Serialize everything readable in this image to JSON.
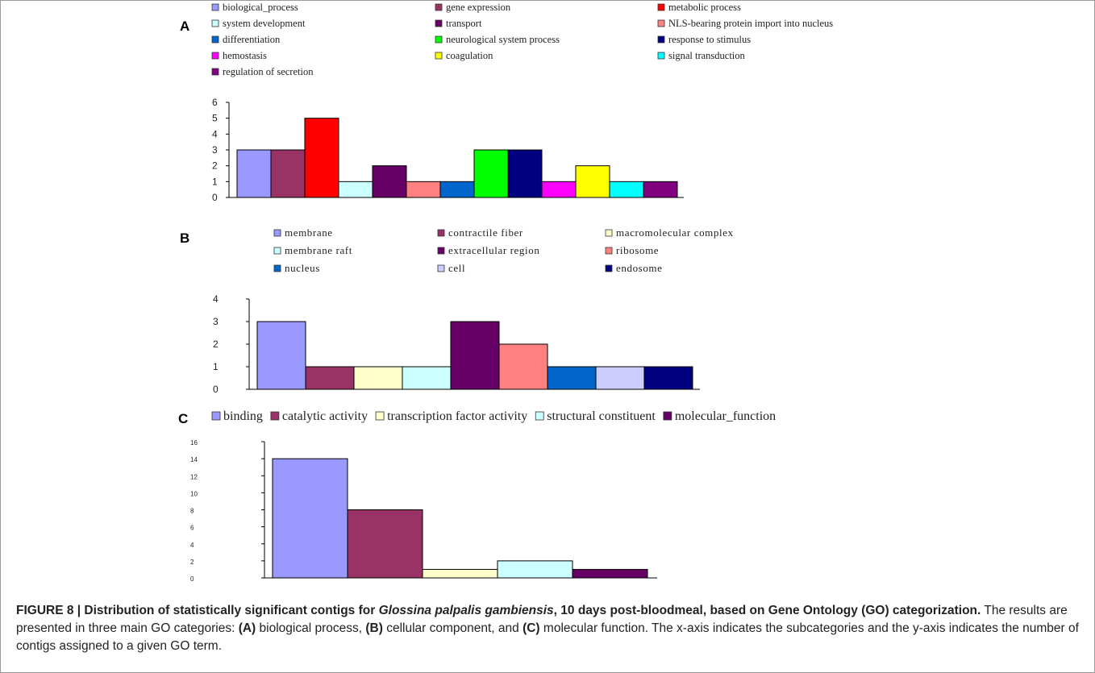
{
  "caption": {
    "bold_prefix": "FIGURE 8 | Distribution of statistically significant contigs for ",
    "bold_italic_species": "Glossina palpalis gambiensis",
    "bold_suffix": ", 10 days post-bloodmeal, based on Gene Ontology (GO) categorization.",
    "text_1": " The results are presented in three main GO categories: ",
    "label_a": "(A)",
    "text_2": " biological process, ",
    "label_b": "(B)",
    "text_3": " cellular component, and ",
    "label_c": "(C)",
    "text_4": " molecular function. The x-axis indicates the subcategories and the y-axis indicates the number of contigs assigned to a given GO term."
  },
  "chart_data": [
    {
      "panel": "A",
      "type": "bar",
      "categories": [
        "biological_process",
        "gene expression",
        "metabolic process",
        "system development",
        "transport",
        "NLS-bearing protein import into nucleus",
        "differentiation",
        "neurological system process",
        "response to stimulus",
        "hemostasis",
        "coagulation",
        "signal transduction",
        "regulation of secretion"
      ],
      "values": [
        3,
        3,
        5,
        1,
        2,
        1,
        1,
        3,
        3,
        1,
        2,
        1,
        1
      ],
      "colors": [
        "#9999ff",
        "#993366",
        "#ff0000",
        "#ccffff",
        "#660066",
        "#ff8080",
        "#0066cc",
        "#00ff00",
        "#000080",
        "#ff00ff",
        "#ffff00",
        "#00ffff",
        "#800080"
      ],
      "ylim": [
        0,
        6
      ],
      "yticks": [
        "0",
        "1",
        "2",
        "3",
        "4",
        "5",
        "6"
      ],
      "legend": "top"
    },
    {
      "panel": "B",
      "type": "bar",
      "categories": [
        "membrane",
        "contractile fiber",
        "macromolecular complex",
        "membrane raft",
        "extracellular region",
        "ribosome",
        "nucleus",
        "cell",
        "endosome"
      ],
      "values": [
        3,
        1,
        1,
        1,
        3,
        2,
        1,
        1,
        1
      ],
      "colors": [
        "#9999ff",
        "#993366",
        "#ffffcc",
        "#ccffff",
        "#660066",
        "#ff8080",
        "#0066cc",
        "#ccccff",
        "#000080"
      ],
      "ylim": [
        0,
        4
      ],
      "yticks": [
        "0",
        "1",
        "2",
        "3",
        "4"
      ],
      "legend": "top"
    },
    {
      "panel": "C",
      "type": "bar",
      "categories": [
        "binding",
        "catalytic activity",
        "transcription factor activity",
        "structural constituent",
        "molecular_function"
      ],
      "values": [
        14,
        8,
        1,
        2,
        1
      ],
      "colors": [
        "#9999ff",
        "#993366",
        "#ffffcc",
        "#ccffff",
        "#660066"
      ],
      "ylim": [
        0,
        16
      ],
      "yticks": [
        "0",
        "2",
        "4",
        "6",
        "8",
        "10",
        "12",
        "14",
        "16"
      ],
      "legend": "top"
    }
  ]
}
